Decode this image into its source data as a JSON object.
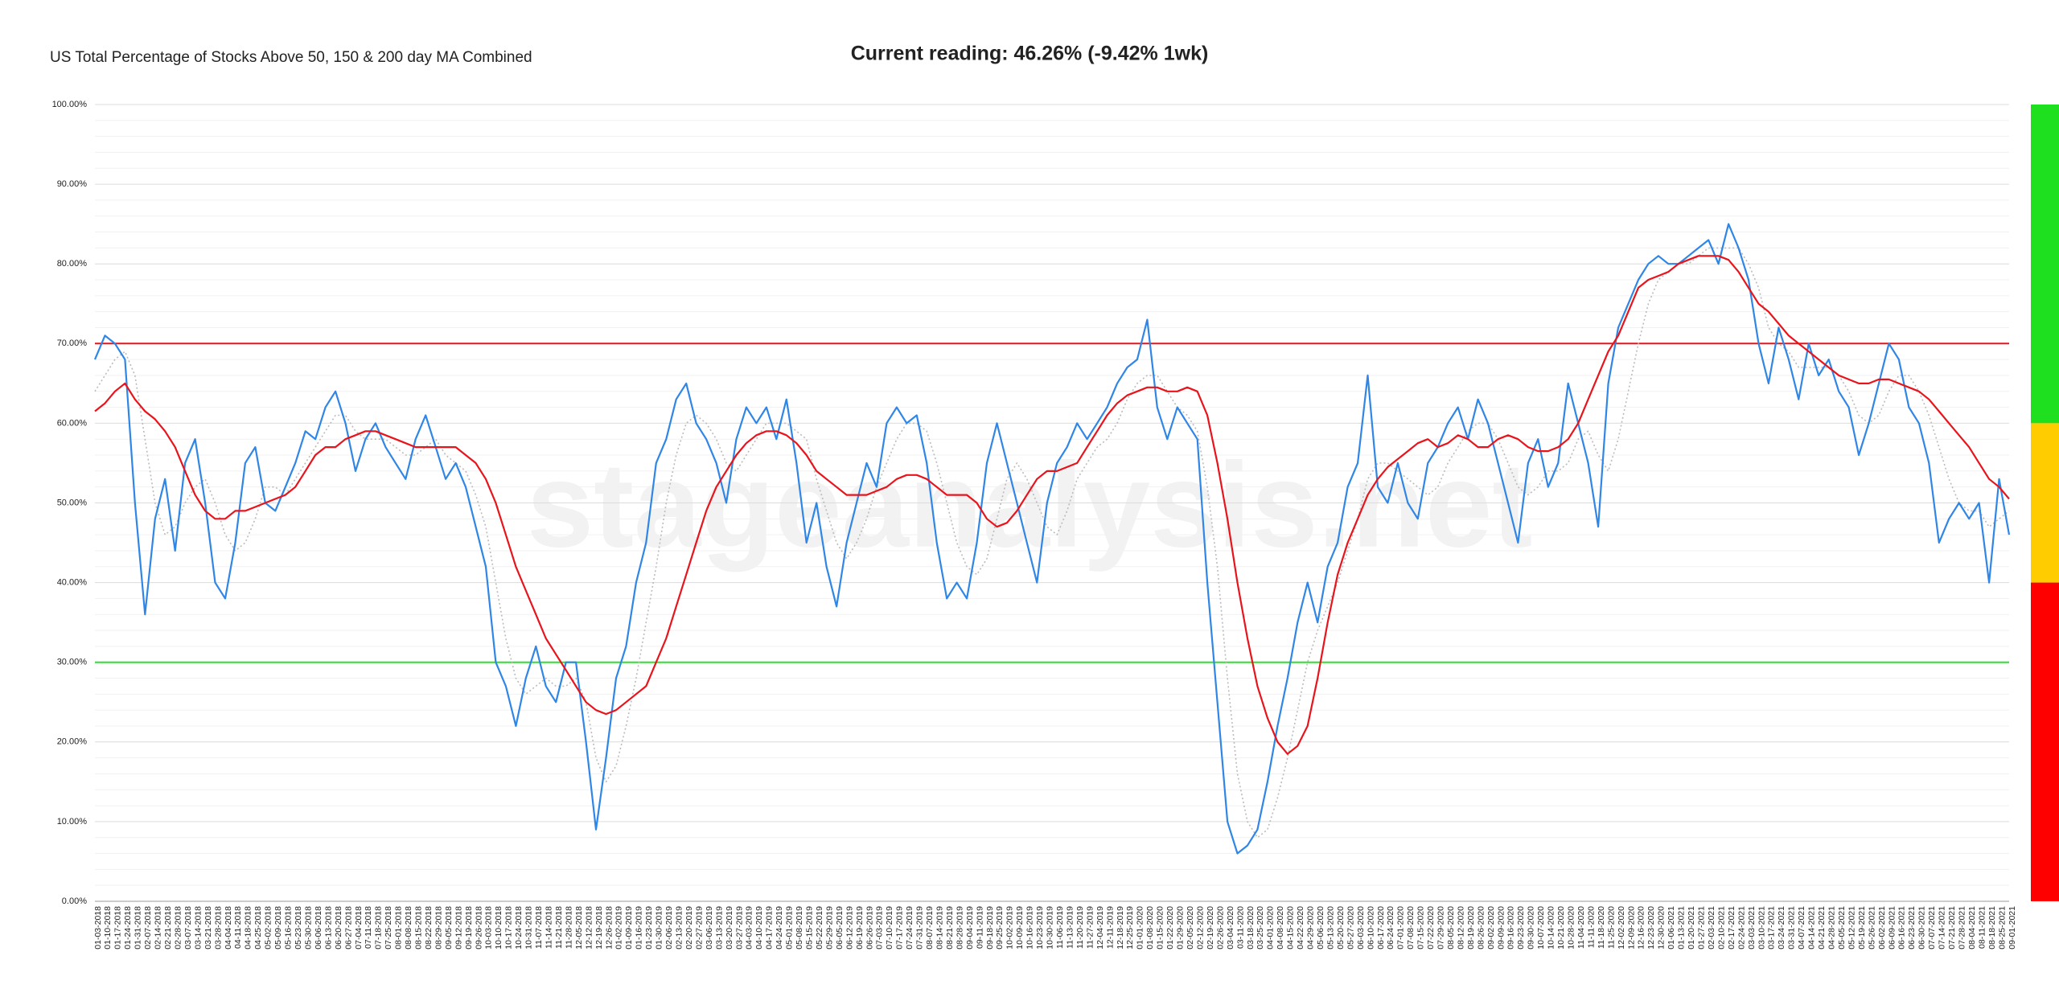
{
  "chart_data": {
    "type": "line",
    "title": "US Total Percentage of Stocks Above 50, 150 & 200 day MA Combined",
    "subtitle": "Current reading: 46.26% (-9.42% 1wk)",
    "watermark": "stageanalysis.net",
    "categories": [
      "01-03-2018",
      "01-10-2018",
      "01-17-2018",
      "01-24-2018",
      "01-31-2018",
      "02-07-2018",
      "02-14-2018",
      "02-21-2018",
      "02-28-2018",
      "03-07-2018",
      "03-14-2018",
      "03-21-2018",
      "03-28-2018",
      "04-04-2018",
      "04-11-2018",
      "04-18-2018",
      "04-25-2018",
      "05-02-2018",
      "05-09-2018",
      "05-16-2018",
      "05-23-2018",
      "05-30-2018",
      "06-06-2018",
      "06-13-2018",
      "06-20-2018",
      "06-27-2018",
      "07-04-2018",
      "07-11-2018",
      "07-18-2018",
      "07-25-2018",
      "08-01-2018",
      "08-08-2018",
      "08-15-2018",
      "08-22-2018",
      "08-29-2018",
      "09-05-2018",
      "09-12-2018",
      "09-19-2018",
      "09-26-2018",
      "10-03-2018",
      "10-10-2018",
      "10-17-2018",
      "10-24-2018",
      "10-31-2018",
      "11-07-2018",
      "11-14-2018",
      "11-21-2018",
      "11-28-2018",
      "12-05-2018",
      "12-12-2018",
      "12-19-2018",
      "12-26-2018",
      "01-02-2019",
      "01-09-2019",
      "01-16-2019",
      "01-23-2019",
      "01-30-2019",
      "02-06-2019",
      "02-13-2019",
      "02-20-2019",
      "02-27-2019",
      "03-06-2019",
      "03-13-2019",
      "03-20-2019",
      "03-27-2019",
      "04-03-2019",
      "04-10-2019",
      "04-17-2019",
      "04-24-2019",
      "05-01-2019",
      "05-08-2019",
      "05-15-2019",
      "05-22-2019",
      "05-29-2019",
      "06-05-2019",
      "06-12-2019",
      "06-19-2019",
      "06-26-2019",
      "07-03-2019",
      "07-10-2019",
      "07-17-2019",
      "07-24-2019",
      "07-31-2019",
      "08-07-2019",
      "08-14-2019",
      "08-21-2019",
      "08-28-2019",
      "09-04-2019",
      "09-11-2019",
      "09-18-2019",
      "09-25-2019",
      "10-02-2019",
      "10-09-2019",
      "10-16-2019",
      "10-23-2019",
      "10-30-2019",
      "11-06-2019",
      "11-13-2019",
      "11-20-2019",
      "11-27-2019",
      "12-04-2019",
      "12-11-2019",
      "12-18-2019",
      "12-25-2019",
      "01-01-2020",
      "01-08-2020",
      "01-15-2020",
      "01-22-2020",
      "01-29-2020",
      "02-05-2020",
      "02-12-2020",
      "02-19-2020",
      "02-26-2020",
      "03-04-2020",
      "03-11-2020",
      "03-18-2020",
      "03-25-2020",
      "04-01-2020",
      "04-08-2020",
      "04-15-2020",
      "04-22-2020",
      "04-29-2020",
      "05-06-2020",
      "05-13-2020",
      "05-20-2020",
      "05-27-2020",
      "06-03-2020",
      "06-10-2020",
      "06-17-2020",
      "06-24-2020",
      "07-01-2020",
      "07-08-2020",
      "07-15-2020",
      "07-22-2020",
      "07-29-2020",
      "08-05-2020",
      "08-12-2020",
      "08-19-2020",
      "08-26-2020",
      "09-02-2020",
      "09-09-2020",
      "09-16-2020",
      "09-23-2020",
      "09-30-2020",
      "10-07-2020",
      "10-14-2020",
      "10-21-2020",
      "10-28-2020",
      "11-04-2020",
      "11-11-2020",
      "11-18-2020",
      "11-25-2020",
      "12-02-2020",
      "12-09-2020",
      "12-16-2020",
      "12-23-2020",
      "12-30-2020",
      "01-06-2021",
      "01-13-2021",
      "01-20-2021",
      "01-27-2021",
      "02-03-2021",
      "02-10-2021",
      "02-17-2021",
      "02-24-2021",
      "03-03-2021",
      "03-10-2021",
      "03-17-2021",
      "03-24-2021",
      "03-31-2021",
      "04-07-2021",
      "04-14-2021",
      "04-21-2021",
      "04-28-2021",
      "05-05-2021",
      "05-12-2021",
      "05-19-2021",
      "05-26-2021",
      "06-02-2021",
      "06-09-2021",
      "06-16-2021",
      "06-23-2021",
      "06-30-2021",
      "07-07-2021",
      "07-14-2021",
      "07-21-2021",
      "07-28-2021",
      "08-04-2021",
      "08-11-2021",
      "08-18-2021",
      "08-25-2021",
      "09-01-2021"
    ],
    "series": [
      {
        "color": "#bbbbbb",
        "style": "dotted",
        "values": [
          64,
          66,
          68,
          69,
          66,
          58,
          50,
          46,
          47,
          50,
          52,
          53,
          50,
          46,
          44,
          45,
          48,
          52,
          52,
          51,
          53,
          55,
          57,
          59,
          61,
          61,
          59,
          58,
          58,
          58,
          57,
          56,
          56,
          57,
          58,
          56,
          55,
          54,
          51,
          47,
          40,
          33,
          28,
          26,
          27,
          28,
          27,
          27,
          28,
          25,
          18,
          15,
          17,
          22,
          28,
          35,
          42,
          50,
          56,
          60,
          61,
          60,
          58,
          55,
          54,
          56,
          58,
          60,
          60,
          60,
          59,
          58,
          53,
          49,
          45,
          43,
          45,
          48,
          52,
          55,
          58,
          60,
          60,
          59,
          55,
          50,
          45,
          42,
          41,
          43,
          48,
          53,
          55,
          53,
          50,
          47,
          46,
          49,
          53,
          55,
          57,
          58,
          60,
          63,
          65,
          66,
          66,
          64,
          62,
          61,
          59,
          52,
          42,
          28,
          16,
          10,
          8,
          9,
          13,
          18,
          24,
          30,
          34,
          37,
          40,
          44,
          48,
          53,
          55,
          55,
          54,
          53,
          52,
          51,
          52,
          55,
          57,
          59,
          60,
          60,
          58,
          55,
          52,
          51,
          52,
          54,
          54,
          55,
          58,
          59,
          56,
          54,
          58,
          64,
          70,
          75,
          78,
          79,
          80,
          80,
          81,
          82,
          82,
          82,
          82,
          80,
          77,
          72,
          70,
          69,
          67,
          67,
          67,
          67,
          66,
          64,
          61,
          60,
          61,
          64,
          66,
          66,
          64,
          61,
          57,
          53,
          50,
          49,
          49,
          47,
          48,
          49
        ]
      },
      {
        "color": "#2f86e6",
        "style": "solid",
        "values": [
          68,
          71,
          70,
          68,
          50,
          36,
          48,
          53,
          44,
          55,
          58,
          50,
          40,
          38,
          45,
          55,
          57,
          50,
          49,
          52,
          55,
          59,
          58,
          62,
          64,
          60,
          54,
          58,
          60,
          57,
          55,
          53,
          58,
          61,
          57,
          53,
          55,
          52,
          47,
          42,
          30,
          27,
          22,
          28,
          32,
          27,
          25,
          30,
          30,
          20,
          9,
          18,
          28,
          32,
          40,
          45,
          55,
          58,
          63,
          65,
          60,
          58,
          55,
          50,
          58,
          62,
          60,
          62,
          58,
          63,
          55,
          45,
          50,
          42,
          37,
          45,
          50,
          55,
          52,
          60,
          62,
          60,
          61,
          55,
          45,
          38,
          40,
          38,
          45,
          55,
          60,
          55,
          50,
          45,
          40,
          50,
          55,
          57,
          60,
          58,
          60,
          62,
          65,
          67,
          68,
          73,
          62,
          58,
          62,
          60,
          58,
          40,
          25,
          10,
          6,
          7,
          9,
          15,
          22,
          28,
          35,
          40,
          35,
          42,
          45,
          52,
          55,
          66,
          52,
          50,
          55,
          50,
          48,
          55,
          57,
          60,
          62,
          58,
          63,
          60,
          55,
          50,
          45,
          55,
          58,
          52,
          55,
          65,
          60,
          55,
          47,
          65,
          72,
          75,
          78,
          80,
          81,
          80,
          80,
          81,
          82,
          83,
          80,
          85,
          82,
          78,
          70,
          65,
          72,
          68,
          63,
          70,
          66,
          68,
          64,
          62,
          56,
          60,
          65,
          70,
          68,
          62,
          60,
          55,
          45,
          48,
          50,
          48,
          50,
          40,
          53,
          46
        ]
      },
      {
        "color": "#e8141c",
        "style": "solid",
        "values": [
          61.5,
          62.5,
          64,
          65,
          63,
          61.5,
          60.5,
          59,
          57,
          54,
          51,
          49,
          48,
          48,
          49,
          49,
          49.5,
          50,
          50.5,
          51,
          52,
          54,
          56,
          57,
          57,
          58,
          58.5,
          59,
          59,
          58.5,
          58,
          57.5,
          57,
          57,
          57,
          57,
          57,
          56,
          55,
          53,
          50,
          46,
          42,
          39,
          36,
          33,
          31,
          29,
          27,
          25,
          24,
          23.5,
          24,
          25,
          26,
          27,
          30,
          33,
          37,
          41,
          45,
          49,
          52,
          54,
          56,
          57.5,
          58.5,
          59,
          59,
          58.5,
          57.5,
          56,
          54,
          53,
          52,
          51,
          51,
          51,
          51.5,
          52,
          53,
          53.5,
          53.5,
          53,
          52,
          51,
          51,
          51,
          50,
          48,
          47,
          47.5,
          49,
          51,
          53,
          54,
          54,
          54.5,
          55,
          57,
          59,
          61,
          62.5,
          63.5,
          64,
          64.5,
          64.5,
          64,
          64,
          64.5,
          64,
          61,
          55,
          48,
          40,
          33,
          27,
          23,
          20,
          18.5,
          19.5,
          22,
          28,
          35,
          41,
          45,
          48,
          51,
          53,
          54.5,
          55.5,
          56.5,
          57.5,
          58,
          57,
          57.5,
          58.5,
          58,
          57,
          57,
          58,
          58.5,
          58,
          57,
          56.5,
          56.5,
          57,
          58,
          60,
          63,
          66,
          69,
          71,
          74,
          77,
          78,
          78.5,
          79,
          80,
          80.5,
          81,
          81,
          81,
          80.5,
          79,
          77,
          75,
          74,
          72.5,
          71,
          70,
          69,
          68,
          67,
          66,
          65.5,
          65,
          65,
          65.5,
          65.5,
          65,
          64.5,
          64,
          63,
          61.5,
          60,
          58.5,
          57,
          55,
          53,
          52,
          50.5
        ]
      }
    ],
    "reference_lines": [
      {
        "value": 70,
        "color": "#e8141c"
      },
      {
        "value": 30,
        "color": "#2ee02e"
      }
    ],
    "zones": [
      {
        "range": [
          60,
          100
        ],
        "color": "#1ee01e"
      },
      {
        "range": [
          40,
          60
        ],
        "color": "#ffcc00"
      },
      {
        "range": [
          0,
          40
        ],
        "color": "#ff0000"
      }
    ],
    "ylim": [
      0,
      100
    ],
    "yticks": [
      {
        "value": 0,
        "label": "0.00%"
      },
      {
        "value": 10,
        "label": "10.00%"
      },
      {
        "value": 20,
        "label": "20.00%"
      },
      {
        "value": 30,
        "label": "30.00%"
      },
      {
        "value": 40,
        "label": "40.00%"
      },
      {
        "value": 50,
        "label": "50.00%"
      },
      {
        "value": 60,
        "label": "60.00%"
      },
      {
        "value": 70,
        "label": "70.00%"
      },
      {
        "value": 80,
        "label": "80.00%"
      },
      {
        "value": 90,
        "label": "90.00%"
      },
      {
        "value": 100,
        "label": "100.00%"
      }
    ],
    "grid": true
  }
}
